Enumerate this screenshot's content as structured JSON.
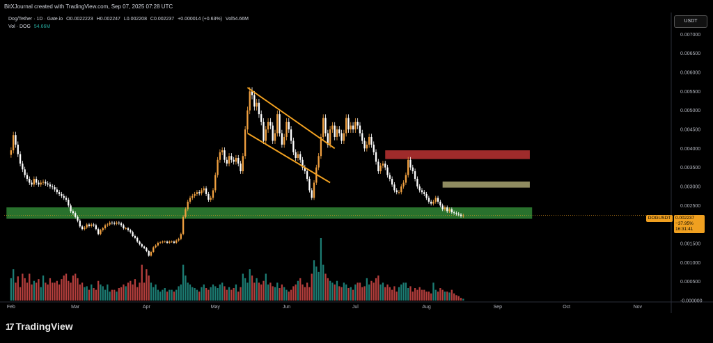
{
  "header": {
    "credit": "BitXJournal created with TradingView.com, Sep 07, 2025 07:28 UTC"
  },
  "legend": {
    "symbol": "Dog/Tether · 1D · Gate.io",
    "open": "O0.0022223",
    "high": "H0.002247",
    "low": "L0.002208",
    "close": "C0.002237",
    "change": "+0.000014 (+0.63%)",
    "vol": "Vol54.66M",
    "vol_label": "Vol · DOG",
    "vol_value": "54.66M"
  },
  "unit_button": "USDT",
  "logo": "TradingView",
  "price_tag": {
    "symbol": "DOGUSDT",
    "price": "0.002237",
    "change": "−37.95%",
    "countdown": "16:31:41"
  },
  "colors": {
    "up": "#f0a040",
    "down": "#f0a040",
    "up_fill": "#f0a040",
    "candle_down": "#ffffff",
    "volume_up": "#26a69a",
    "volume_down": "#ef5350",
    "green_zone": "#2e7d32",
    "red_zone": "#b03030",
    "tan_zone": "#9e9a6a",
    "channel": "#f0a020",
    "price_line": "#f0a020"
  },
  "chart_data": {
    "type": "candlestick",
    "ylabel": "",
    "y_ticks": [
      "0.007000",
      "0.006500",
      "0.006000",
      "0.005500",
      "0.005000",
      "0.004500",
      "0.004000",
      "0.003500",
      "0.003000",
      "0.002500",
      "0.001500",
      "0.001000",
      "0.000500",
      "-0.000000"
    ],
    "y_tick_values": [
      0.007,
      0.0065,
      0.006,
      0.0055,
      0.005,
      0.0045,
      0.004,
      0.0035,
      0.003,
      0.0025,
      0.0015,
      0.001,
      0.0005,
      0.0
    ],
    "ylim": [
      0.0,
      0.0075
    ],
    "x_ticks": [
      "Feb",
      "Mar",
      "Apr",
      "May",
      "Jun",
      "Jul",
      "Aug",
      "Sep",
      "Oct",
      "Nov"
    ],
    "x_tick_days": [
      0,
      28,
      59,
      89,
      120,
      150,
      181,
      212,
      242,
      273
    ],
    "xlim_days": [
      -3,
      287
    ],
    "close_series": [
      0.00395,
      0.00435,
      0.0041,
      0.00385,
      0.0036,
      0.00345,
      0.0033,
      0.0032,
      0.0031,
      0.00305,
      0.0032,
      0.0031,
      0.00305,
      0.0031,
      0.00312,
      0.00308,
      0.00305,
      0.003,
      0.00298,
      0.00292,
      0.00285,
      0.0028,
      0.00275,
      0.0027,
      0.00265,
      0.0025,
      0.00235,
      0.0023,
      0.0022,
      0.0021,
      0.00195,
      0.00188,
      0.00192,
      0.002,
      0.00196,
      0.002,
      0.00198,
      0.00188,
      0.00175,
      0.00185,
      0.0019,
      0.00198,
      0.002,
      0.00205,
      0.00204,
      0.00202,
      0.00205,
      0.00203,
      0.00198,
      0.0019,
      0.0019,
      0.00185,
      0.0018,
      0.0017,
      0.00165,
      0.00155,
      0.00148,
      0.00142,
      0.00138,
      0.0013,
      0.00118,
      0.00128,
      0.0014,
      0.00145,
      0.00152,
      0.00153,
      0.00155,
      0.00155,
      0.00152,
      0.00155,
      0.00155,
      0.00152,
      0.00158,
      0.00162,
      0.00175,
      0.0022,
      0.0024,
      0.0026,
      0.0027,
      0.00275,
      0.0028,
      0.00285,
      0.00282,
      0.0029,
      0.00295,
      0.0028,
      0.00265,
      0.0027,
      0.0029,
      0.0033,
      0.0037,
      0.0039,
      0.00395,
      0.0037,
      0.0036,
      0.0038,
      0.0037,
      0.00365,
      0.00375,
      0.0036,
      0.0034,
      0.0038,
      0.0045,
      0.005,
      0.0055,
      0.0054,
      0.0051,
      0.0052,
      0.0049,
      0.0047,
      0.0042,
      0.0045,
      0.0047,
      0.0046,
      0.0042,
      0.0044,
      0.0049,
      0.0044,
      0.0041,
      0.0043,
      0.0047,
      0.0045,
      0.0042,
      0.0039,
      0.00375,
      0.00385,
      0.0037,
      0.0035,
      0.0034,
      0.0032,
      0.0029,
      0.0027,
      0.0031,
      0.0035,
      0.0038,
      0.0043,
      0.0048,
      0.0044,
      0.0041,
      0.0045,
      0.0046,
      0.0043,
      0.0045,
      0.0044,
      0.0042,
      0.0044,
      0.0048,
      0.0045,
      0.0046,
      0.0045,
      0.0047,
      0.0046,
      0.0044,
      0.0042,
      0.004,
      0.0041,
      0.0043,
      0.0041,
      0.0039,
      0.00365,
      0.0034,
      0.00355,
      0.0036,
      0.0035,
      0.0033,
      0.0032,
      0.00305,
      0.0029,
      0.00285,
      0.00285,
      0.003,
      0.0031,
      0.0033,
      0.0037,
      0.0035,
      0.0034,
      0.0032,
      0.003,
      0.0029,
      0.00285,
      0.0028,
      0.0027,
      0.0026,
      0.00255,
      0.0026,
      0.0027,
      0.0026,
      0.0025,
      0.0024,
      0.00245,
      0.00235,
      0.0024,
      0.00232,
      0.0023,
      0.00228,
      0.00226,
      0.0022237,
      0.002237
    ],
    "volume_series": [
      0.00025,
      0.00035,
      0.0002,
      0.00027,
      0.00015,
      0.0003,
      0.00025,
      0.0002,
      0.0003,
      0.00018,
      0.00022,
      0.0002,
      0.00024,
      0.00015,
      0.00028,
      0.0002,
      0.00018,
      0.00025,
      0.0002,
      0.0002,
      0.00022,
      0.00018,
      0.00024,
      0.00028,
      0.0003,
      0.00022,
      0.0002,
      0.00028,
      0.0003,
      0.00025,
      0.00018,
      0.0002,
      0.00015,
      0.00016,
      0.00012,
      0.00018,
      0.00014,
      0.00012,
      0.00022,
      0.00018,
      0.00016,
      0.00012,
      0.00018,
      0.0001,
      0.00012,
      0.00012,
      0.0001,
      0.00014,
      0.00015,
      0.00018,
      0.00016,
      0.0002,
      0.00022,
      0.00018,
      0.00024,
      0.00015,
      0.0002,
      0.0004,
      0.0002,
      0.00035,
      0.00028,
      0.0002,
      0.00015,
      0.00018,
      0.00012,
      0.0001,
      0.00012,
      0.00014,
      0.0001,
      0.00012,
      0.00012,
      0.0001,
      0.00012,
      0.00016,
      0.00018,
      0.0004,
      0.00028,
      0.0002,
      0.00018,
      0.00015,
      0.00014,
      0.00012,
      0.0001,
      0.00015,
      0.00018,
      0.00014,
      0.00012,
      0.00015,
      0.00018,
      0.00016,
      0.00014,
      0.00018,
      0.0002,
      0.00016,
      0.00012,
      0.00015,
      0.00012,
      0.00014,
      0.00018,
      0.0001,
      0.00015,
      0.0003,
      0.00025,
      0.0002,
      0.00035,
      0.00028,
      0.0002,
      0.00025,
      0.0002,
      0.00018,
      0.00022,
      0.0003,
      0.00018,
      0.0002,
      0.00016,
      0.00015,
      0.0002,
      0.00014,
      0.00018,
      0.00015,
      0.00012,
      0.0001,
      0.00012,
      0.00016,
      0.00018,
      0.00022,
      0.00025,
      0.00018,
      0.00015,
      0.0002,
      0.00015,
      0.0003,
      0.00045,
      0.00038,
      0.00032,
      0.0007,
      0.0004,
      0.0003,
      0.00025,
      0.00022,
      0.0002,
      0.00018,
      0.00022,
      0.00016,
      0.00015,
      0.0002,
      0.00018,
      0.00014,
      0.00015,
      0.00012,
      0.00018,
      0.0002,
      0.0002,
      0.00015,
      0.00016,
      0.00025,
      0.00018,
      0.00022,
      0.0002,
      0.00025,
      0.00028,
      0.00018,
      0.0002,
      0.00015,
      0.00018,
      0.00015,
      0.00012,
      0.00016,
      0.0001,
      0.00015,
      0.00018,
      0.0002,
      0.0002,
      0.00014,
      0.00016,
      0.0001,
      0.00014,
      0.00012,
      0.00015,
      0.00012,
      0.00012,
      0.0001,
      0.0001,
      8e-05,
      0.0002,
      0.00012,
      0.0001,
      0.00014,
      0.00012,
      0.0001,
      0.0001,
      9e-05,
      0.00012,
      8e-05,
      6e-05,
      5e-05,
      3e-05,
      2e-05
    ],
    "last_price": 0.002237,
    "zones": [
      {
        "name": "green-support-zone",
        "y_low": 0.00215,
        "y_high": 0.00245,
        "x_start_day": -2,
        "x_end_day": 227
      },
      {
        "name": "red-resistance-zone",
        "y_low": 0.00372,
        "y_high": 0.00395,
        "x_start_day": 163,
        "x_end_day": 226
      },
      {
        "name": "tan-zone",
        "y_low": 0.00297,
        "y_high": 0.00313,
        "x_start_day": 188,
        "x_end_day": 226
      }
    ],
    "channel": {
      "upper": [
        [
          103,
          0.0056
        ],
        [
          141,
          0.004
        ]
      ],
      "lower": [
        [
          103,
          0.0044
        ],
        [
          139,
          0.0031
        ]
      ]
    }
  }
}
